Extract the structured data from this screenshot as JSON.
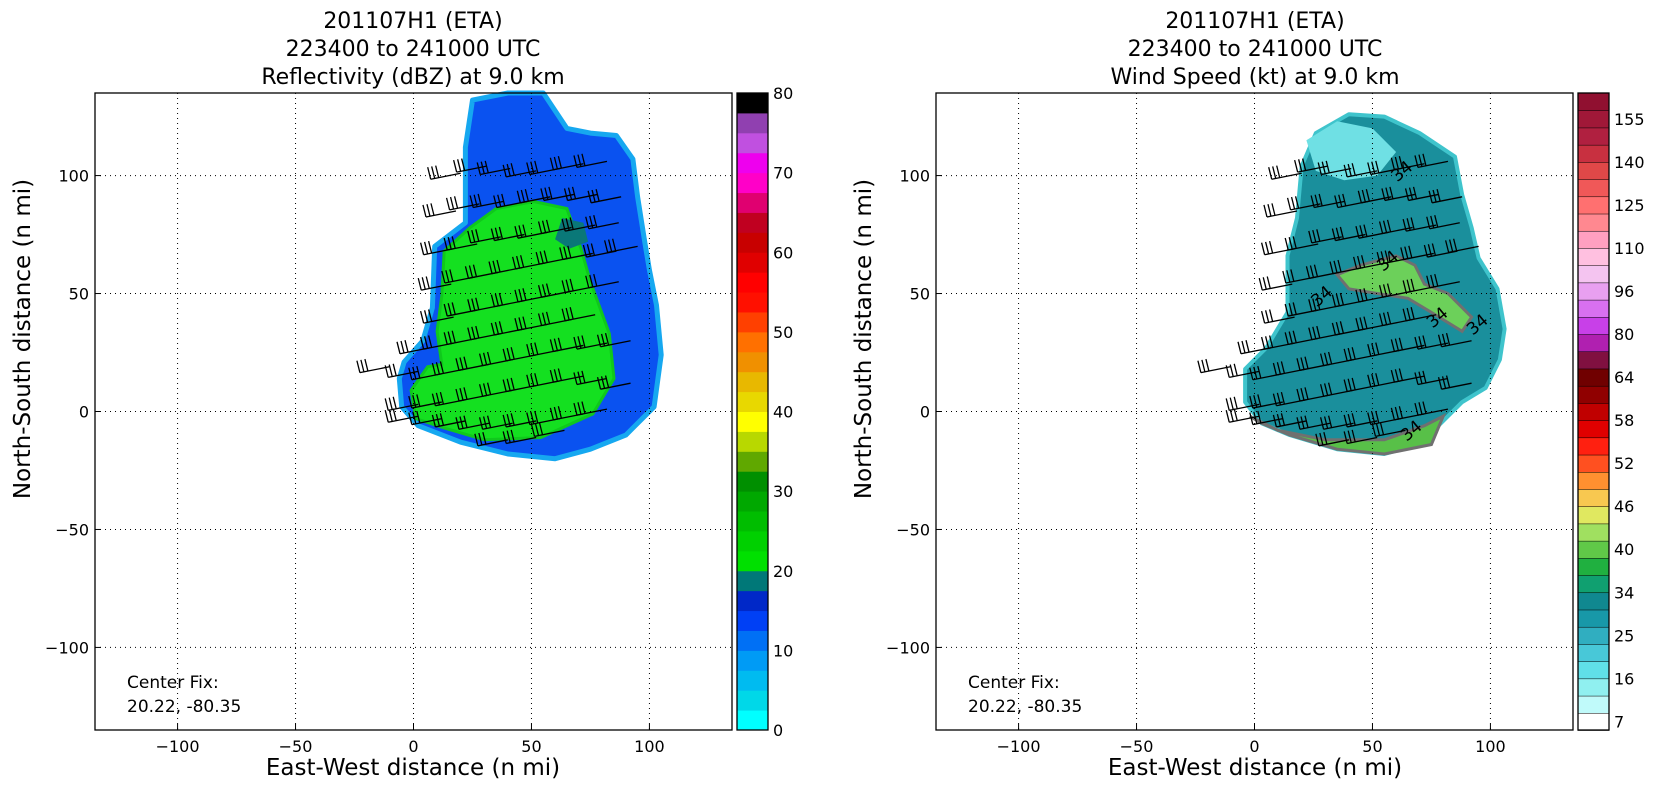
{
  "chart_data": [
    {
      "type": "heatmap",
      "title": "201107H1 (ETA)",
      "subtitle": "223400 to 241000 UTC",
      "subtitle2": "Reflectivity (dBZ) at 9.0 km",
      "xlabel": "East-West distance (n mi)",
      "ylabel": "North-South distance (n mi)",
      "xlim": [
        -135,
        135
      ],
      "ylim": [
        -135,
        135
      ],
      "x_ticks": [
        -100,
        -50,
        0,
        50,
        100
      ],
      "y_ticks": [
        -100,
        -50,
        0,
        50,
        100
      ],
      "grid": true,
      "annotation_line1": "Center Fix:",
      "annotation_line2": "20.22, -80.35",
      "field_outline": [
        [
          -4,
          21
        ],
        [
          4,
          30
        ],
        [
          8,
          44
        ],
        [
          9,
          70
        ],
        [
          22,
          80
        ],
        [
          22,
          112
        ],
        [
          25,
          132
        ],
        [
          40,
          135
        ],
        [
          55,
          135
        ],
        [
          65,
          120
        ],
        [
          75,
          118
        ],
        [
          86,
          117
        ],
        [
          93,
          107
        ],
        [
          95,
          91
        ],
        [
          98,
          72
        ],
        [
          100,
          60
        ],
        [
          103,
          45
        ],
        [
          105,
          24
        ],
        [
          102,
          2
        ],
        [
          90,
          -10
        ],
        [
          75,
          -16
        ],
        [
          60,
          -20
        ],
        [
          40,
          -18
        ],
        [
          20,
          -13
        ],
        [
          2,
          -6
        ],
        [
          -5,
          2
        ],
        [
          -6,
          14
        ]
      ],
      "field_core": [
        [
          12,
          20
        ],
        [
          10,
          34
        ],
        [
          12,
          49
        ],
        [
          13,
          68
        ],
        [
          24,
          78
        ],
        [
          35,
          86
        ],
        [
          51,
          89
        ],
        [
          65,
          86
        ],
        [
          71,
          69
        ],
        [
          75,
          55
        ],
        [
          83,
          33
        ],
        [
          85,
          14
        ],
        [
          76,
          -1
        ],
        [
          54,
          -11
        ],
        [
          30,
          -12
        ],
        [
          13,
          -7
        ],
        [
          1,
          -3
        ],
        [
          -1,
          9
        ],
        [
          6,
          19
        ]
      ],
      "field_teal": [
        [
          63,
          82
        ],
        [
          72,
          80
        ],
        [
          74,
          72
        ],
        [
          66,
          69
        ],
        [
          60,
          73
        ]
      ],
      "barbs": [
        [
          20,
          101
        ],
        [
          31,
          104
        ],
        [
          41,
          103
        ],
        [
          52,
          102
        ],
        [
          62,
          103
        ],
        [
          72,
          105
        ],
        [
          82,
          106
        ],
        [
          18,
          85
        ],
        [
          28,
          88
        ],
        [
          38,
          89
        ],
        [
          48,
          89
        ],
        [
          58,
          91
        ],
        [
          68,
          92
        ],
        [
          78,
          92
        ],
        [
          88,
          91
        ],
        [
          17,
          69
        ],
        [
          27,
          71
        ],
        [
          37,
          74
        ],
        [
          47,
          75
        ],
        [
          57,
          76
        ],
        [
          67,
          78
        ],
        [
          77,
          79
        ],
        [
          87,
          80
        ],
        [
          95,
          70
        ],
        [
          16,
          54
        ],
        [
          26,
          57
        ],
        [
          36,
          59
        ],
        [
          46,
          61
        ],
        [
          56,
          63
        ],
        [
          66,
          65
        ],
        [
          76,
          67
        ],
        [
          86,
          68
        ],
        [
          17,
          40
        ],
        [
          27,
          43
        ],
        [
          37,
          45
        ],
        [
          47,
          47
        ],
        [
          57,
          49
        ],
        [
          67,
          51
        ],
        [
          77,
          53
        ],
        [
          87,
          55
        ],
        [
          7,
          27
        ],
        [
          17,
          29
        ],
        [
          27,
          31
        ],
        [
          37,
          33
        ],
        [
          47,
          35
        ],
        [
          57,
          37
        ],
        [
          67,
          39
        ],
        [
          77,
          41
        ],
        [
          -10,
          19
        ],
        [
          2,
          17
        ],
        [
          12,
          16
        ],
        [
          22,
          18
        ],
        [
          32,
          20
        ],
        [
          42,
          22
        ],
        [
          52,
          24
        ],
        [
          62,
          26
        ],
        [
          72,
          28
        ],
        [
          82,
          29
        ],
        [
          92,
          30
        ],
        [
          2,
          3
        ],
        [
          12,
          4
        ],
        [
          22,
          5
        ],
        [
          32,
          7
        ],
        [
          42,
          9
        ],
        [
          52,
          11
        ],
        [
          62,
          13
        ],
        [
          72,
          15
        ],
        [
          82,
          14
        ],
        [
          92,
          12
        ],
        [
          2,
          -2
        ],
        [
          12,
          -3
        ],
        [
          22,
          -4
        ],
        [
          32,
          -5
        ],
        [
          42,
          -5
        ],
        [
          52,
          -4
        ],
        [
          62,
          -3
        ],
        [
          72,
          -1
        ],
        [
          82,
          1
        ],
        [
          40,
          -12
        ],
        [
          52,
          -11
        ],
        [
          64,
          -8
        ]
      ],
      "colorbar": {
        "ticks": [
          0,
          10,
          20,
          30,
          40,
          50,
          60,
          70,
          80
        ],
        "bins": [
          [
            0,
            2.5,
            "#00ffff"
          ],
          [
            2.5,
            5,
            "#00d8e8"
          ],
          [
            5,
            7.5,
            "#00bbf0"
          ],
          [
            7.5,
            10,
            "#009bf5"
          ],
          [
            10,
            12.5,
            "#0070f5"
          ],
          [
            12.5,
            15,
            "#0040f5"
          ],
          [
            15,
            17.5,
            "#0028c8"
          ],
          [
            17.5,
            20,
            "#007878"
          ],
          [
            20,
            22.5,
            "#00e000"
          ],
          [
            22.5,
            25,
            "#00d000"
          ],
          [
            25,
            27.5,
            "#00bd00"
          ],
          [
            27.5,
            30,
            "#00a800"
          ],
          [
            30,
            32.5,
            "#008f00"
          ],
          [
            32.5,
            35,
            "#60a800"
          ],
          [
            35,
            37.5,
            "#b8d800"
          ],
          [
            37.5,
            40,
            "#ffff00"
          ],
          [
            40,
            42.5,
            "#e8d800"
          ],
          [
            42.5,
            45,
            "#e8b800"
          ],
          [
            45,
            47.5,
            "#f09000"
          ],
          [
            47.5,
            50,
            "#ff7000"
          ],
          [
            50,
            52.5,
            "#ff4000"
          ],
          [
            52.5,
            55,
            "#ff1000"
          ],
          [
            55,
            57.5,
            "#ff0000"
          ],
          [
            57.5,
            60,
            "#e00000"
          ],
          [
            60,
            62.5,
            "#c80000"
          ],
          [
            62.5,
            65,
            "#c00020"
          ],
          [
            65,
            67.5,
            "#e00070"
          ],
          [
            67.5,
            70,
            "#ff00c8"
          ],
          [
            70,
            72.5,
            "#ee00ee"
          ],
          [
            72.5,
            75,
            "#c050e0"
          ],
          [
            75,
            77.5,
            "#9040b0"
          ],
          [
            77.5,
            80,
            "#000000"
          ]
        ]
      }
    },
    {
      "type": "heatmap",
      "title": "201107H1 (ETA)",
      "subtitle": "223400 to 241000 UTC",
      "subtitle2": "Wind Speed (kt) at 9.0 km",
      "xlabel": "East-West distance (n mi)",
      "ylabel": "North-South distance (n mi)",
      "xlim": [
        -135,
        135
      ],
      "ylim": [
        -135,
        135
      ],
      "x_ticks": [
        -100,
        -50,
        0,
        50,
        100
      ],
      "y_ticks": [
        -100,
        -50,
        0,
        50,
        100
      ],
      "grid": true,
      "annotation_line1": "Center Fix:",
      "annotation_line2": "20.22, -80.35",
      "contour_label": "34",
      "contour_label_positions": [
        [
          30,
          47
        ],
        [
          58,
          62
        ],
        [
          64,
          100
        ],
        [
          79,
          38
        ],
        [
          96,
          35
        ],
        [
          68,
          -10
        ]
      ],
      "field_outline": [
        [
          -4,
          18
        ],
        [
          5,
          27
        ],
        [
          14,
          42
        ],
        [
          14,
          66
        ],
        [
          18,
          82
        ],
        [
          20,
          104
        ],
        [
          26,
          118
        ],
        [
          40,
          126
        ],
        [
          55,
          125
        ],
        [
          70,
          118
        ],
        [
          85,
          108
        ],
        [
          88,
          92
        ],
        [
          92,
          78
        ],
        [
          95,
          65
        ],
        [
          103,
          52
        ],
        [
          106,
          35
        ],
        [
          104,
          22
        ],
        [
          98,
          10
        ],
        [
          88,
          4
        ],
        [
          80,
          -4
        ],
        [
          70,
          -14
        ],
        [
          55,
          -18
        ],
        [
          35,
          -16
        ],
        [
          15,
          -10
        ],
        [
          3,
          -5
        ],
        [
          -4,
          4
        ]
      ],
      "field_green": [
        [
          35,
          58
        ],
        [
          45,
          62
        ],
        [
          60,
          66
        ],
        [
          68,
          62
        ],
        [
          72,
          54
        ],
        [
          82,
          50
        ],
        [
          92,
          40
        ],
        [
          88,
          34
        ],
        [
          75,
          42
        ],
        [
          65,
          48
        ],
        [
          52,
          50
        ],
        [
          40,
          52
        ]
      ],
      "field_green2": [
        [
          -2,
          -2
        ],
        [
          10,
          -8
        ],
        [
          30,
          -12
        ],
        [
          55,
          -12
        ],
        [
          72,
          -6
        ],
        [
          80,
          -2
        ],
        [
          75,
          -14
        ],
        [
          55,
          -18
        ],
        [
          35,
          -16
        ],
        [
          15,
          -10
        ],
        [
          3,
          -5
        ]
      ],
      "field_light": [
        [
          22,
          115
        ],
        [
          35,
          123
        ],
        [
          50,
          120
        ],
        [
          60,
          110
        ],
        [
          52,
          100
        ],
        [
          38,
          98
        ],
        [
          26,
          102
        ]
      ],
      "barbs": [
        [
          20,
          101
        ],
        [
          31,
          104
        ],
        [
          41,
          103
        ],
        [
          52,
          102
        ],
        [
          62,
          103
        ],
        [
          72,
          105
        ],
        [
          82,
          106
        ],
        [
          18,
          85
        ],
        [
          28,
          88
        ],
        [
          38,
          89
        ],
        [
          48,
          89
        ],
        [
          58,
          91
        ],
        [
          68,
          92
        ],
        [
          78,
          92
        ],
        [
          88,
          91
        ],
        [
          17,
          69
        ],
        [
          27,
          71
        ],
        [
          37,
          74
        ],
        [
          47,
          75
        ],
        [
          57,
          76
        ],
        [
          67,
          78
        ],
        [
          77,
          79
        ],
        [
          87,
          80
        ],
        [
          95,
          70
        ],
        [
          16,
          54
        ],
        [
          26,
          57
        ],
        [
          36,
          59
        ],
        [
          46,
          61
        ],
        [
          56,
          63
        ],
        [
          66,
          65
        ],
        [
          76,
          67
        ],
        [
          86,
          68
        ],
        [
          17,
          40
        ],
        [
          27,
          43
        ],
        [
          37,
          45
        ],
        [
          47,
          47
        ],
        [
          57,
          49
        ],
        [
          67,
          51
        ],
        [
          77,
          53
        ],
        [
          87,
          55
        ],
        [
          7,
          27
        ],
        [
          17,
          29
        ],
        [
          27,
          31
        ],
        [
          37,
          33
        ],
        [
          47,
          35
        ],
        [
          57,
          37
        ],
        [
          67,
          39
        ],
        [
          77,
          41
        ],
        [
          -10,
          19
        ],
        [
          2,
          17
        ],
        [
          12,
          16
        ],
        [
          22,
          18
        ],
        [
          32,
          20
        ],
        [
          42,
          22
        ],
        [
          52,
          24
        ],
        [
          62,
          26
        ],
        [
          72,
          28
        ],
        [
          82,
          29
        ],
        [
          92,
          30
        ],
        [
          2,
          3
        ],
        [
          12,
          4
        ],
        [
          22,
          5
        ],
        [
          32,
          7
        ],
        [
          42,
          9
        ],
        [
          52,
          11
        ],
        [
          62,
          13
        ],
        [
          72,
          15
        ],
        [
          82,
          14
        ],
        [
          92,
          12
        ],
        [
          2,
          -2
        ],
        [
          12,
          -3
        ],
        [
          22,
          -4
        ],
        [
          32,
          -5
        ],
        [
          42,
          -5
        ],
        [
          52,
          -4
        ],
        [
          62,
          -3
        ],
        [
          72,
          -1
        ],
        [
          82,
          1
        ],
        [
          40,
          -12
        ],
        [
          52,
          -11
        ],
        [
          64,
          -8
        ]
      ],
      "colorbar": {
        "ticks": [
          7,
          16,
          25,
          34,
          40,
          46,
          52,
          58,
          64,
          80,
          96,
          110,
          125,
          140,
          155
        ],
        "bins": [
          [
            "#ffffff"
          ],
          [
            "#c0fafa"
          ],
          [
            "#90f0f0"
          ],
          [
            "#60e0e8"
          ],
          [
            "#48c8d8"
          ],
          [
            "#30aec0"
          ],
          [
            "#1898a8"
          ],
          [
            "#108890"
          ],
          [
            "#10a070"
          ],
          [
            "#20b040"
          ],
          [
            "#60c848"
          ],
          [
            "#a0e060"
          ],
          [
            "#e0e860"
          ],
          [
            "#f8c850"
          ],
          [
            "#ff9030"
          ],
          [
            "#ff5020"
          ],
          [
            "#ff2010"
          ],
          [
            "#e00000"
          ],
          [
            "#c00000"
          ],
          [
            "#900000"
          ],
          [
            "#700000"
          ],
          [
            "#801040"
          ],
          [
            "#b020b0"
          ],
          [
            "#c840e8"
          ],
          [
            "#d870f0"
          ],
          [
            "#e8a0f0"
          ],
          [
            "#f4c4f0"
          ],
          [
            "#ffc0e0"
          ],
          [
            "#ffa0c0"
          ],
          [
            "#ff8890"
          ],
          [
            "#ff7070"
          ],
          [
            "#f05858"
          ],
          [
            "#e04848"
          ],
          [
            "#c83040"
          ],
          [
            "#b02040"
          ],
          [
            "#a01838"
          ],
          [
            "#901030"
          ]
        ]
      }
    }
  ]
}
